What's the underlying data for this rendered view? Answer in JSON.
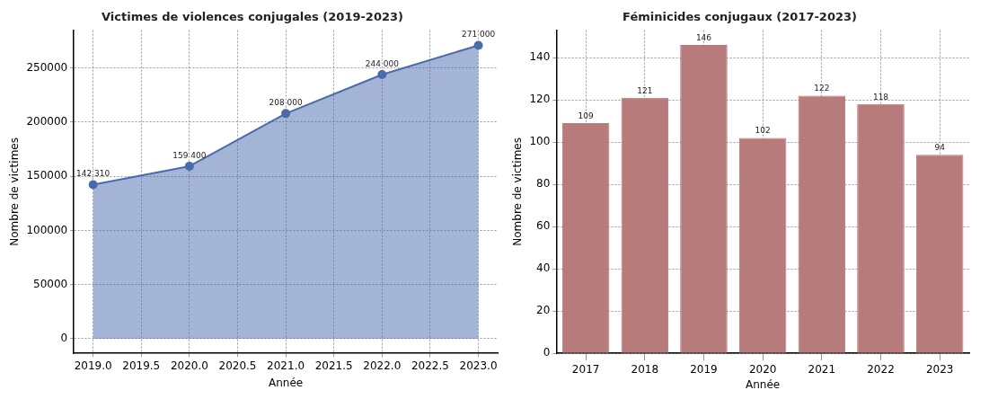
{
  "chart_data": [
    {
      "type": "area",
      "title": "Victimes de violences conjugales (2019-2023)",
      "xlabel": "Année",
      "ylabel": "Nombre de victimes",
      "x": [
        2019,
        2020,
        2021,
        2022,
        2023
      ],
      "series": [
        {
          "color": "#4a6aad",
          "values": [
            142310,
            159400,
            208000,
            244000,
            271000
          ],
          "value_labels": [
            "142 310",
            "159 400",
            "208 000",
            "244 000",
            "271 000"
          ]
        }
      ],
      "xlim": [
        2018.8,
        2023.2
      ],
      "ylim": [
        -13500,
        285000
      ],
      "xticks": [
        {
          "value": 2019,
          "label": "2019.0"
        },
        2019.5,
        {
          "value": 2020,
          "label": "2020.0"
        },
        2020.5,
        {
          "value": 2021,
          "label": "2021.0"
        },
        2021.5,
        {
          "value": 2022,
          "label": "2022.0"
        },
        2022.5,
        {
          "value": 2023,
          "label": "2023.0"
        }
      ],
      "yticks": [
        0,
        50000,
        100000,
        150000,
        200000,
        250000
      ],
      "grid": true,
      "marker": "circle"
    },
    {
      "type": "bar",
      "title": "Féminicides conjugaux (2017-2023)",
      "xlabel": "Année",
      "ylabel": "Nombre de victimes",
      "categories": [
        "2017",
        "2018",
        "2019",
        "2020",
        "2021",
        "2022",
        "2023"
      ],
      "values": [
        109,
        121,
        146,
        102,
        122,
        118,
        94
      ],
      "color": "#b77b7b",
      "ylim": [
        0,
        153
      ],
      "yticks": [
        0,
        20,
        40,
        60,
        80,
        100,
        120,
        140
      ],
      "grid": true,
      "data_labels": true
    }
  ]
}
